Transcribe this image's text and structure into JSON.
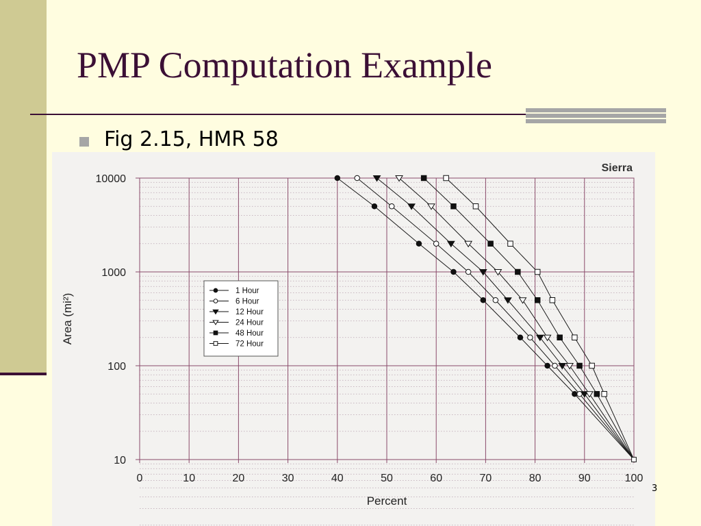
{
  "slide": {
    "title": "PMP Computation Example",
    "bullet": "Fig 2.15, HMR 58",
    "slide_number": "3",
    "colors": {
      "background": "#fffde0",
      "accent": "#3b0f35",
      "sidebar": "#cfca93",
      "grid": "#8a4a6a"
    }
  },
  "chart_data": {
    "type": "line",
    "title": "Sierra",
    "xlabel": "Percent",
    "ylabel": "Area (mi²)",
    "xlim": [
      0,
      100
    ],
    "ylim": [
      10,
      10000
    ],
    "yscale": "log",
    "xticks": [
      "0",
      "10",
      "20",
      "30",
      "40",
      "50",
      "60",
      "70",
      "80",
      "90",
      "100"
    ],
    "yticks": [
      {
        "value": 10,
        "label": "10"
      },
      {
        "value": 100,
        "label": "100"
      },
      {
        "value": 1000,
        "label": "1000"
      },
      {
        "value": 10000,
        "label": "10000"
      }
    ],
    "grid": true,
    "legend_position": "left",
    "series": [
      {
        "name": "1 Hour",
        "marker": "filled-circle",
        "x": [
          40,
          47.5,
          56.5,
          63.5,
          69.5,
          77,
          82.5,
          88,
          100
        ],
        "y": [
          10000,
          5000,
          2000,
          1000,
          500,
          200,
          100,
          50,
          10
        ]
      },
      {
        "name": "6 Hour",
        "marker": "open-circle",
        "x": [
          44,
          51,
          60,
          66.5,
          72,
          79,
          84,
          89,
          100
        ],
        "y": [
          10000,
          5000,
          2000,
          1000,
          500,
          200,
          100,
          50,
          10
        ]
      },
      {
        "name": "12 Hour",
        "marker": "filled-triangle",
        "x": [
          48,
          55,
          63,
          69.5,
          74.5,
          81,
          85.5,
          90,
          100
        ],
        "y": [
          10000,
          5000,
          2000,
          1000,
          500,
          200,
          100,
          50,
          10
        ]
      },
      {
        "name": "24 Hour",
        "marker": "open-triangle",
        "x": [
          52.5,
          59,
          66.5,
          72.5,
          77.5,
          82.5,
          87,
          91,
          100
        ],
        "y": [
          10000,
          5000,
          2000,
          1000,
          500,
          200,
          100,
          50,
          10
        ]
      },
      {
        "name": "48 Hour",
        "marker": "filled-square",
        "x": [
          57.5,
          63.5,
          71,
          76.5,
          80.5,
          85,
          89,
          92.5,
          100
        ],
        "y": [
          10000,
          5000,
          2000,
          1000,
          500,
          200,
          100,
          50,
          10
        ]
      },
      {
        "name": "72 Hour",
        "marker": "open-square",
        "x": [
          62,
          68,
          75,
          80.5,
          83.5,
          88,
          91.5,
          94,
          100
        ],
        "y": [
          10000,
          5000,
          2000,
          1000,
          500,
          200,
          100,
          50,
          10
        ]
      }
    ]
  }
}
